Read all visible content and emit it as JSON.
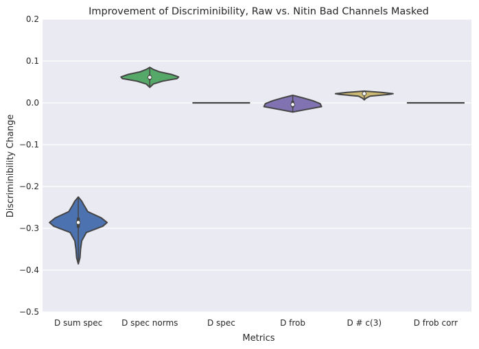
{
  "chart_data": {
    "type": "violin",
    "title": "Improvement of Discriminibility, Raw vs. Nitin Bad Channels Masked",
    "xlabel": "Metrics",
    "ylabel": "Discriminibility Change",
    "ylim": [
      -0.5,
      0.2
    ],
    "yticks": [
      0.2,
      0.1,
      0.0,
      -0.1,
      -0.2,
      -0.3,
      -0.4,
      -0.5
    ],
    "ytick_labels": [
      "0.2",
      "0.1",
      "0.0",
      "−0.1",
      "−0.2",
      "−0.3",
      "−0.4",
      "−0.5"
    ],
    "grid": true,
    "background": "#EAEAF2",
    "categories": [
      "D sum spec",
      "D spec norms",
      "D spec",
      "D frob",
      "D # c(3)",
      "D frob corr"
    ],
    "violins": [
      {
        "category": "D sum spec",
        "color": "#4C72B0",
        "min": -0.385,
        "max": -0.225,
        "median": -0.286,
        "q1": -0.296,
        "q3": -0.277,
        "profile": [
          [
            -0.385,
            0.0
          ],
          [
            -0.37,
            0.06
          ],
          [
            -0.35,
            0.08
          ],
          [
            -0.33,
            0.12
          ],
          [
            -0.31,
            0.28
          ],
          [
            -0.295,
            0.85
          ],
          [
            -0.286,
            1.0
          ],
          [
            -0.275,
            0.8
          ],
          [
            -0.26,
            0.33
          ],
          [
            -0.245,
            0.2
          ],
          [
            -0.235,
            0.12
          ],
          [
            -0.225,
            0.0
          ]
        ]
      },
      {
        "category": "D spec norms",
        "color": "#55A868",
        "min": 0.037,
        "max": 0.085,
        "median": 0.061,
        "q1": 0.058,
        "q3": 0.064,
        "profile": [
          [
            0.037,
            0.0
          ],
          [
            0.045,
            0.12
          ],
          [
            0.052,
            0.45
          ],
          [
            0.058,
            0.95
          ],
          [
            0.062,
            1.0
          ],
          [
            0.068,
            0.75
          ],
          [
            0.074,
            0.35
          ],
          [
            0.08,
            0.12
          ],
          [
            0.085,
            0.0
          ]
        ]
      },
      {
        "category": "D spec",
        "color": "#C44E52",
        "min": 0.0,
        "max": 0.0,
        "median": 0.0,
        "flat": true
      },
      {
        "category": "D frob",
        "color": "#8172B2",
        "min": -0.022,
        "max": 0.018,
        "median": -0.004,
        "q1": -0.008,
        "q3": 0.002,
        "profile": [
          [
            -0.022,
            0.0
          ],
          [
            -0.016,
            0.45
          ],
          [
            -0.009,
            1.0
          ],
          [
            -0.002,
            0.95
          ],
          [
            0.005,
            0.7
          ],
          [
            0.012,
            0.35
          ],
          [
            0.018,
            0.0
          ]
        ]
      },
      {
        "category": "D # c(3)",
        "color": "#CCB974",
        "min": 0.007,
        "max": 0.028,
        "median": 0.022,
        "q1": 0.021,
        "q3": 0.023,
        "profile": [
          [
            0.007,
            0.0
          ],
          [
            0.011,
            0.06
          ],
          [
            0.016,
            0.2
          ],
          [
            0.02,
            0.85
          ],
          [
            0.022,
            1.0
          ],
          [
            0.025,
            0.6
          ],
          [
            0.028,
            0.0
          ]
        ]
      },
      {
        "category": "D frob corr",
        "color": "#64B5CD",
        "min": 0.0,
        "max": 0.0,
        "median": 0.0,
        "flat": true
      }
    ]
  }
}
